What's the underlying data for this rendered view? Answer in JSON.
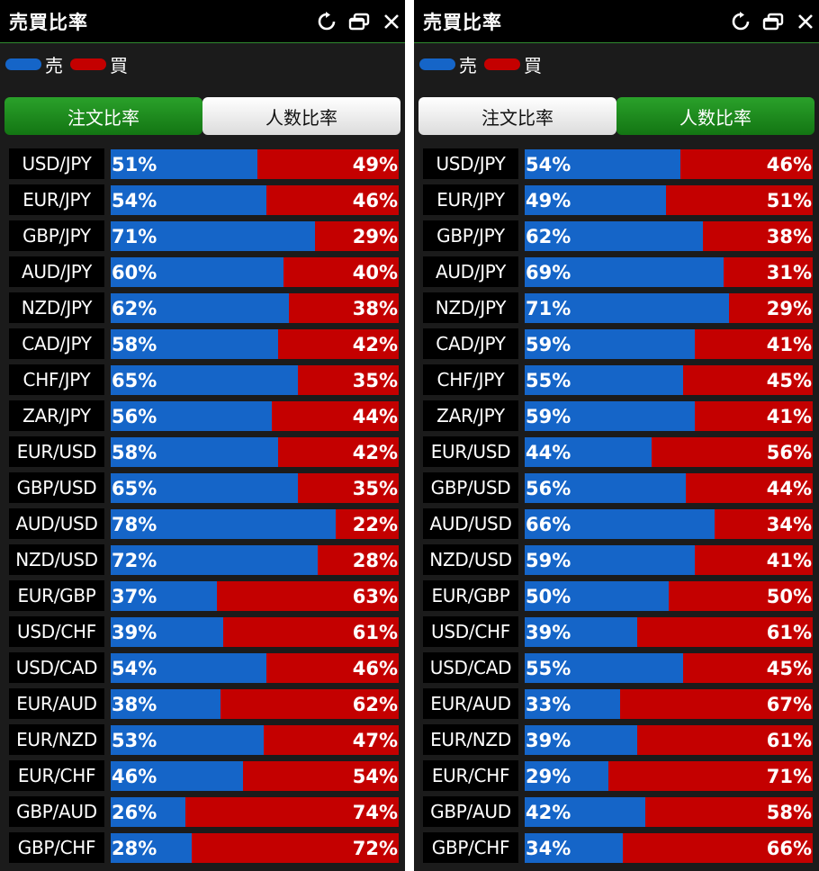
{
  "colors": {
    "sell": "#1565c8",
    "buy": "#c40000",
    "active_tab": "#1c8a1c"
  },
  "panels": [
    {
      "title": "売買比率",
      "icons": [
        "refresh-icon",
        "restore-window-icon",
        "close-icon"
      ],
      "legend": {
        "sell_label": "売",
        "buy_label": "買"
      },
      "tabs": [
        {
          "label": "注文比率",
          "active": true
        },
        {
          "label": "人数比率",
          "active": false
        }
      ],
      "rows": [
        {
          "pair": "USD/JPY",
          "sell": "51%",
          "buy": "49%"
        },
        {
          "pair": "EUR/JPY",
          "sell": "54%",
          "buy": "46%"
        },
        {
          "pair": "GBP/JPY",
          "sell": "71%",
          "buy": "29%"
        },
        {
          "pair": "AUD/JPY",
          "sell": "60%",
          "buy": "40%"
        },
        {
          "pair": "NZD/JPY",
          "sell": "62%",
          "buy": "38%"
        },
        {
          "pair": "CAD/JPY",
          "sell": "58%",
          "buy": "42%"
        },
        {
          "pair": "CHF/JPY",
          "sell": "65%",
          "buy": "35%"
        },
        {
          "pair": "ZAR/JPY",
          "sell": "56%",
          "buy": "44%"
        },
        {
          "pair": "EUR/USD",
          "sell": "58%",
          "buy": "42%"
        },
        {
          "pair": "GBP/USD",
          "sell": "65%",
          "buy": "35%"
        },
        {
          "pair": "AUD/USD",
          "sell": "78%",
          "buy": "22%"
        },
        {
          "pair": "NZD/USD",
          "sell": "72%",
          "buy": "28%"
        },
        {
          "pair": "EUR/GBP",
          "sell": "37%",
          "buy": "63%"
        },
        {
          "pair": "USD/CHF",
          "sell": "39%",
          "buy": "61%"
        },
        {
          "pair": "USD/CAD",
          "sell": "54%",
          "buy": "46%"
        },
        {
          "pair": "EUR/AUD",
          "sell": "38%",
          "buy": "62%"
        },
        {
          "pair": "EUR/NZD",
          "sell": "53%",
          "buy": "47%"
        },
        {
          "pair": "EUR/CHF",
          "sell": "46%",
          "buy": "54%"
        },
        {
          "pair": "GBP/AUD",
          "sell": "26%",
          "buy": "74%"
        },
        {
          "pair": "GBP/CHF",
          "sell": "28%",
          "buy": "72%"
        }
      ]
    },
    {
      "title": "売買比率",
      "icons": [
        "refresh-icon",
        "restore-window-icon",
        "close-icon"
      ],
      "legend": {
        "sell_label": "売",
        "buy_label": "買"
      },
      "tabs": [
        {
          "label": "注文比率",
          "active": false
        },
        {
          "label": "人数比率",
          "active": true
        }
      ],
      "rows": [
        {
          "pair": "USD/JPY",
          "sell": "54%",
          "buy": "46%"
        },
        {
          "pair": "EUR/JPY",
          "sell": "49%",
          "buy": "51%"
        },
        {
          "pair": "GBP/JPY",
          "sell": "62%",
          "buy": "38%"
        },
        {
          "pair": "AUD/JPY",
          "sell": "69%",
          "buy": "31%"
        },
        {
          "pair": "NZD/JPY",
          "sell": "71%",
          "buy": "29%"
        },
        {
          "pair": "CAD/JPY",
          "sell": "59%",
          "buy": "41%"
        },
        {
          "pair": "CHF/JPY",
          "sell": "55%",
          "buy": "45%"
        },
        {
          "pair": "ZAR/JPY",
          "sell": "59%",
          "buy": "41%"
        },
        {
          "pair": "EUR/USD",
          "sell": "44%",
          "buy": "56%"
        },
        {
          "pair": "GBP/USD",
          "sell": "56%",
          "buy": "44%"
        },
        {
          "pair": "AUD/USD",
          "sell": "66%",
          "buy": "34%"
        },
        {
          "pair": "NZD/USD",
          "sell": "59%",
          "buy": "41%"
        },
        {
          "pair": "EUR/GBP",
          "sell": "50%",
          "buy": "50%"
        },
        {
          "pair": "USD/CHF",
          "sell": "39%",
          "buy": "61%"
        },
        {
          "pair": "USD/CAD",
          "sell": "55%",
          "buy": "45%"
        },
        {
          "pair": "EUR/AUD",
          "sell": "33%",
          "buy": "67%"
        },
        {
          "pair": "EUR/NZD",
          "sell": "39%",
          "buy": "61%"
        },
        {
          "pair": "EUR/CHF",
          "sell": "29%",
          "buy": "71%"
        },
        {
          "pair": "GBP/AUD",
          "sell": "42%",
          "buy": "58%"
        },
        {
          "pair": "GBP/CHF",
          "sell": "34%",
          "buy": "66%"
        }
      ]
    }
  ]
}
